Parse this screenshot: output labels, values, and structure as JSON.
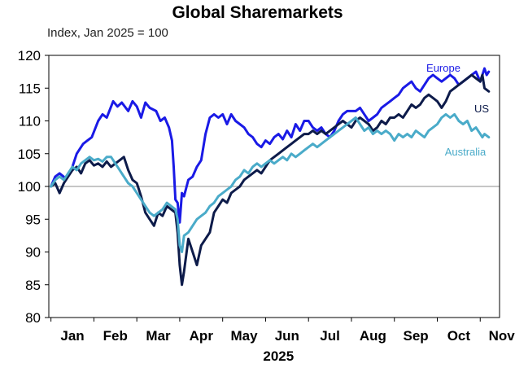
{
  "title": "Global Sharemarkets",
  "subtitle": "Index, Jan 2025 = 100",
  "chart_data": {
    "type": "line",
    "title": "Global Sharemarkets",
    "ylabel": "Index, Jan 2025 = 100",
    "xlabel": "2025",
    "ylim": [
      80,
      120
    ],
    "yticks": [
      "120",
      "115",
      "110",
      "105",
      "100",
      "95",
      "90",
      "85",
      "80"
    ],
    "x_categories": [
      "Jan",
      "Feb",
      "Mar",
      "Apr",
      "May",
      "Jun",
      "Jul",
      "Aug",
      "Sep",
      "Oct",
      "Nov"
    ],
    "x_domain": [
      1,
      11.45
    ],
    "reference_line": 100,
    "series": [
      {
        "name": "Europe",
        "color": "#1a1ae6",
        "points": [
          [
            1.0,
            100
          ],
          [
            1.1,
            101.5
          ],
          [
            1.2,
            102
          ],
          [
            1.35,
            101.2
          ],
          [
            1.5,
            103
          ],
          [
            1.6,
            105
          ],
          [
            1.75,
            106.5
          ],
          [
            1.85,
            107
          ],
          [
            1.95,
            107.5
          ],
          [
            2.1,
            110
          ],
          [
            2.2,
            111
          ],
          [
            2.3,
            110.5
          ],
          [
            2.45,
            113
          ],
          [
            2.55,
            112.2
          ],
          [
            2.65,
            112.8
          ],
          [
            2.8,
            111.5
          ],
          [
            2.9,
            113
          ],
          [
            3.0,
            112.2
          ],
          [
            3.1,
            110.5
          ],
          [
            3.2,
            112.8
          ],
          [
            3.3,
            112
          ],
          [
            3.45,
            111.5
          ],
          [
            3.55,
            110
          ],
          [
            3.65,
            110.5
          ],
          [
            3.75,
            109
          ],
          [
            3.82,
            107
          ],
          [
            3.86,
            103
          ],
          [
            3.9,
            98
          ],
          [
            3.95,
            97.5
          ],
          [
            4.0,
            94.5
          ],
          [
            4.05,
            99
          ],
          [
            4.1,
            98.5
          ],
          [
            4.2,
            101
          ],
          [
            4.3,
            101.5
          ],
          [
            4.4,
            103
          ],
          [
            4.5,
            104
          ],
          [
            4.6,
            108
          ],
          [
            4.7,
            110.5
          ],
          [
            4.8,
            111
          ],
          [
            4.9,
            110.5
          ],
          [
            5.0,
            111
          ],
          [
            5.1,
            109.5
          ],
          [
            5.2,
            111
          ],
          [
            5.3,
            110
          ],
          [
            5.4,
            109.5
          ],
          [
            5.5,
            109
          ],
          [
            5.6,
            108
          ],
          [
            5.7,
            107.5
          ],
          [
            5.8,
            106.5
          ],
          [
            5.9,
            106
          ],
          [
            6.0,
            107
          ],
          [
            6.1,
            106.5
          ],
          [
            6.2,
            107.5
          ],
          [
            6.3,
            108
          ],
          [
            6.4,
            107.2
          ],
          [
            6.5,
            108.5
          ],
          [
            6.6,
            107.5
          ],
          [
            6.7,
            109.5
          ],
          [
            6.8,
            108.5
          ],
          [
            6.9,
            110
          ],
          [
            7.0,
            110
          ],
          [
            7.1,
            109
          ],
          [
            7.2,
            108.5
          ],
          [
            7.3,
            109
          ],
          [
            7.4,
            108
          ],
          [
            7.5,
            107.5
          ],
          [
            7.6,
            108.5
          ],
          [
            7.7,
            110
          ],
          [
            7.8,
            111
          ],
          [
            7.9,
            111.5
          ],
          [
            8.0,
            111.5
          ],
          [
            8.1,
            111.5
          ],
          [
            8.2,
            112
          ],
          [
            8.3,
            111
          ],
          [
            8.4,
            110
          ],
          [
            8.5,
            110.5
          ],
          [
            8.6,
            111
          ],
          [
            8.7,
            112
          ],
          [
            8.8,
            112.5
          ],
          [
            8.9,
            113
          ],
          [
            9.0,
            113.5
          ],
          [
            9.1,
            114
          ],
          [
            9.2,
            115
          ],
          [
            9.3,
            115.5
          ],
          [
            9.4,
            116
          ],
          [
            9.5,
            115
          ],
          [
            9.6,
            114.5
          ],
          [
            9.7,
            115.5
          ],
          [
            9.8,
            116.5
          ],
          [
            9.9,
            117
          ],
          [
            10.0,
            116.5
          ],
          [
            10.1,
            116
          ],
          [
            10.2,
            116.5
          ],
          [
            10.3,
            117
          ],
          [
            10.4,
            116.5
          ],
          [
            10.5,
            115.5
          ],
          [
            10.6,
            116
          ],
          [
            10.7,
            116.5
          ],
          [
            10.8,
            117
          ],
          [
            10.9,
            117.5
          ],
          [
            11.0,
            116
          ],
          [
            11.05,
            117
          ],
          [
            11.1,
            118
          ],
          [
            11.15,
            117
          ],
          [
            11.2,
            117.5
          ]
        ]
      },
      {
        "name": "US",
        "color": "#0d1b4a",
        "points": [
          [
            1.0,
            100
          ],
          [
            1.1,
            100.5
          ],
          [
            1.2,
            99
          ],
          [
            1.3,
            100.5
          ],
          [
            1.4,
            101.5
          ],
          [
            1.5,
            102.5
          ],
          [
            1.6,
            103
          ],
          [
            1.7,
            102
          ],
          [
            1.8,
            103.5
          ],
          [
            1.9,
            104
          ],
          [
            2.0,
            103.2
          ],
          [
            2.1,
            103.5
          ],
          [
            2.2,
            103
          ],
          [
            2.3,
            103.8
          ],
          [
            2.4,
            103
          ],
          [
            2.5,
            103.5
          ],
          [
            2.6,
            104
          ],
          [
            2.7,
            104.5
          ],
          [
            2.8,
            102.5
          ],
          [
            2.9,
            101
          ],
          [
            3.0,
            100.5
          ],
          [
            3.1,
            98.5
          ],
          [
            3.2,
            96
          ],
          [
            3.3,
            95
          ],
          [
            3.4,
            94
          ],
          [
            3.5,
            96
          ],
          [
            3.6,
            95.5
          ],
          [
            3.7,
            97
          ],
          [
            3.8,
            96.5
          ],
          [
            3.9,
            96
          ],
          [
            3.95,
            93
          ],
          [
            4.0,
            88
          ],
          [
            4.05,
            85
          ],
          [
            4.1,
            87
          ],
          [
            4.2,
            92
          ],
          [
            4.3,
            90
          ],
          [
            4.4,
            88
          ],
          [
            4.5,
            91
          ],
          [
            4.6,
            92
          ],
          [
            4.7,
            93
          ],
          [
            4.8,
            96
          ],
          [
            4.9,
            97
          ],
          [
            5.0,
            98
          ],
          [
            5.1,
            97.5
          ],
          [
            5.2,
            99
          ],
          [
            5.3,
            99.5
          ],
          [
            5.4,
            100
          ],
          [
            5.5,
            101
          ],
          [
            5.6,
            101.5
          ],
          [
            5.7,
            102
          ],
          [
            5.8,
            102.5
          ],
          [
            5.9,
            102
          ],
          [
            6.0,
            103
          ],
          [
            6.1,
            104
          ],
          [
            6.2,
            104.5
          ],
          [
            6.3,
            105
          ],
          [
            6.4,
            105.5
          ],
          [
            6.5,
            106
          ],
          [
            6.6,
            106.5
          ],
          [
            6.7,
            107
          ],
          [
            6.8,
            107.5
          ],
          [
            6.9,
            108
          ],
          [
            7.0,
            108
          ],
          [
            7.1,
            108.5
          ],
          [
            7.2,
            108
          ],
          [
            7.3,
            108.5
          ],
          [
            7.4,
            108
          ],
          [
            7.5,
            108.5
          ],
          [
            7.6,
            109
          ],
          [
            7.7,
            109.5
          ],
          [
            7.8,
            110
          ],
          [
            7.9,
            109.5
          ],
          [
            8.0,
            109
          ],
          [
            8.1,
            110
          ],
          [
            8.2,
            110.5
          ],
          [
            8.3,
            110
          ],
          [
            8.4,
            109.5
          ],
          [
            8.5,
            108.5
          ],
          [
            8.6,
            109
          ],
          [
            8.7,
            110
          ],
          [
            8.8,
            109.5
          ],
          [
            8.9,
            110.5
          ],
          [
            9.0,
            110.5
          ],
          [
            9.1,
            111
          ],
          [
            9.2,
            110.5
          ],
          [
            9.3,
            111.5
          ],
          [
            9.4,
            112.5
          ],
          [
            9.5,
            112
          ],
          [
            9.6,
            112.5
          ],
          [
            9.7,
            113.5
          ],
          [
            9.8,
            114
          ],
          [
            9.9,
            113.5
          ],
          [
            10.0,
            113
          ],
          [
            10.1,
            112
          ],
          [
            10.2,
            113
          ],
          [
            10.3,
            114.5
          ],
          [
            10.4,
            115
          ],
          [
            10.5,
            115.5
          ],
          [
            10.6,
            116
          ],
          [
            10.7,
            116.5
          ],
          [
            10.8,
            117
          ],
          [
            10.9,
            116.5
          ],
          [
            11.0,
            116
          ],
          [
            11.05,
            117
          ],
          [
            11.1,
            115
          ],
          [
            11.2,
            114.5
          ]
        ]
      },
      {
        "name": "Australia",
        "color": "#4aabc9",
        "points": [
          [
            1.0,
            100
          ],
          [
            1.1,
            101
          ],
          [
            1.2,
            101.5
          ],
          [
            1.3,
            101
          ],
          [
            1.4,
            102
          ],
          [
            1.5,
            103
          ],
          [
            1.6,
            102.5
          ],
          [
            1.7,
            103.5
          ],
          [
            1.8,
            104
          ],
          [
            1.9,
            104.5
          ],
          [
            2.0,
            104
          ],
          [
            2.1,
            104.2
          ],
          [
            2.2,
            103.8
          ],
          [
            2.3,
            104.5
          ],
          [
            2.4,
            104.5
          ],
          [
            2.5,
            103.5
          ],
          [
            2.6,
            102.5
          ],
          [
            2.7,
            101.5
          ],
          [
            2.8,
            100.5
          ],
          [
            2.9,
            100
          ],
          [
            3.0,
            99
          ],
          [
            3.1,
            98
          ],
          [
            3.2,
            97
          ],
          [
            3.3,
            96
          ],
          [
            3.4,
            95.5
          ],
          [
            3.5,
            96
          ],
          [
            3.6,
            96.5
          ],
          [
            3.7,
            97.5
          ],
          [
            3.8,
            97
          ],
          [
            3.9,
            96.5
          ],
          [
            3.95,
            95
          ],
          [
            4.0,
            91
          ],
          [
            4.05,
            90
          ],
          [
            4.1,
            92.5
          ],
          [
            4.2,
            93
          ],
          [
            4.3,
            94
          ],
          [
            4.4,
            95
          ],
          [
            4.5,
            95.5
          ],
          [
            4.6,
            96
          ],
          [
            4.7,
            97
          ],
          [
            4.8,
            97.5
          ],
          [
            4.9,
            98.5
          ],
          [
            5.0,
            99
          ],
          [
            5.1,
            99.5
          ],
          [
            5.2,
            100
          ],
          [
            5.3,
            101
          ],
          [
            5.4,
            101.5
          ],
          [
            5.5,
            102.5
          ],
          [
            5.6,
            102
          ],
          [
            5.7,
            103
          ],
          [
            5.8,
            103.5
          ],
          [
            5.9,
            103
          ],
          [
            6.0,
            103.5
          ],
          [
            6.1,
            104
          ],
          [
            6.2,
            103.5
          ],
          [
            6.3,
            104
          ],
          [
            6.4,
            104.5
          ],
          [
            6.5,
            104
          ],
          [
            6.6,
            105
          ],
          [
            6.7,
            104.5
          ],
          [
            6.8,
            105
          ],
          [
            6.9,
            105.5
          ],
          [
            7.0,
            106
          ],
          [
            7.1,
            106.5
          ],
          [
            7.2,
            106
          ],
          [
            7.3,
            106.5
          ],
          [
            7.4,
            107
          ],
          [
            7.5,
            107.5
          ],
          [
            7.6,
            108
          ],
          [
            7.7,
            108.5
          ],
          [
            7.8,
            109
          ],
          [
            7.9,
            109.5
          ],
          [
            8.0,
            110
          ],
          [
            8.1,
            110.5
          ],
          [
            8.2,
            109.5
          ],
          [
            8.3,
            108.5
          ],
          [
            8.4,
            109
          ],
          [
            8.5,
            108
          ],
          [
            8.6,
            108.5
          ],
          [
            8.7,
            108
          ],
          [
            8.8,
            108.5
          ],
          [
            8.9,
            108
          ],
          [
            9.0,
            107
          ],
          [
            9.1,
            108
          ],
          [
            9.2,
            107.5
          ],
          [
            9.3,
            108
          ],
          [
            9.4,
            107.5
          ],
          [
            9.5,
            108.5
          ],
          [
            9.6,
            108
          ],
          [
            9.7,
            107.5
          ],
          [
            9.8,
            108.5
          ],
          [
            9.9,
            109
          ],
          [
            10.0,
            109.5
          ],
          [
            10.1,
            110.5
          ],
          [
            10.2,
            111
          ],
          [
            10.3,
            110.5
          ],
          [
            10.4,
            111
          ],
          [
            10.5,
            110
          ],
          [
            10.6,
            109.5
          ],
          [
            10.7,
            110
          ],
          [
            10.8,
            108.5
          ],
          [
            10.9,
            109
          ],
          [
            11.0,
            108
          ],
          [
            11.05,
            107.5
          ],
          [
            11.1,
            108
          ],
          [
            11.2,
            107.5
          ]
        ]
      }
    ],
    "series_labels": [
      {
        "text": "Europe",
        "color": "#1a1ae6"
      },
      {
        "text": "US",
        "color": "#0d1b4a"
      },
      {
        "text": "Australia",
        "color": "#4aabc9"
      }
    ]
  }
}
